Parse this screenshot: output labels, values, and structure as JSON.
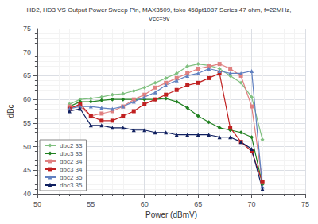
{
  "chart_data": {
    "type": "line",
    "title": "HD2, HD3 VS Output Power Sweep Pin, MAX3509, toko 458pt1087 Series 47 ohm, f=22MHz,\nVcc=9v",
    "xlabel": "Power (dBmV)",
    "ylabel": "dBc",
    "xlim": [
      50,
      75
    ],
    "ylim": [
      40,
      75
    ],
    "xticks": [
      50,
      55,
      60,
      65,
      70,
      75
    ],
    "yticks": [
      40,
      45,
      50,
      55,
      60,
      65,
      70,
      75
    ],
    "grid": true,
    "legend": "lower left",
    "series": [
      {
        "name": "dbc2 33",
        "color": "#80c080",
        "marker": "diamond",
        "x": [
          53,
          54,
          55,
          56,
          57,
          58,
          59,
          60,
          61,
          62,
          63,
          64,
          65,
          66,
          67,
          68,
          69,
          70,
          71
        ],
        "values": [
          59.0,
          60.0,
          60.2,
          60.5,
          61.0,
          61.2,
          61.8,
          62.5,
          63.5,
          64.5,
          65.5,
          67.0,
          67.5,
          67.2,
          66.5,
          65.0,
          63.5,
          60.5,
          51.5
        ]
      },
      {
        "name": "dbc3 33",
        "color": "#208020",
        "marker": "diamond",
        "x": [
          53,
          54,
          55,
          56,
          57,
          58,
          59,
          60,
          61,
          62,
          63,
          64,
          65,
          66,
          67,
          68,
          69,
          70,
          71
        ],
        "values": [
          58.5,
          59.5,
          59.5,
          59.8,
          60.0,
          60.0,
          60.0,
          60.0,
          60.0,
          60.2,
          59.5,
          58.2,
          56.5,
          55.2,
          54.0,
          53.5,
          53.0,
          52.0,
          42.0
        ]
      },
      {
        "name": "dbc2 34",
        "color": "#e08080",
        "marker": "square",
        "x": [
          53,
          54,
          55,
          56,
          57,
          58,
          59,
          60,
          61,
          62,
          63,
          64,
          65,
          66,
          67,
          68,
          69,
          70,
          71
        ],
        "values": [
          58.5,
          58.5,
          56.5,
          57.0,
          57.5,
          58.5,
          60.0,
          61.0,
          62.5,
          63.5,
          64.5,
          65.5,
          66.5,
          67.0,
          67.5,
          66.5,
          65.0,
          58.5,
          42.5
        ]
      },
      {
        "name": "dbc3 34",
        "color": "#c02020",
        "marker": "square",
        "x": [
          53,
          54,
          55,
          56,
          57,
          58,
          59,
          60,
          61,
          62,
          63,
          64,
          65,
          66,
          67,
          68,
          69,
          70,
          71
        ],
        "values": [
          58.0,
          59.0,
          56.5,
          55.5,
          55.5,
          56.5,
          57.5,
          59.0,
          60.0,
          61.0,
          62.0,
          63.0,
          63.5,
          64.5,
          65.5,
          54.0,
          51.0,
          49.0,
          42.5
        ]
      },
      {
        "name": "dbc2 35",
        "color": "#6080c0",
        "marker": "triangle",
        "x": [
          53,
          54,
          55,
          56,
          57,
          58,
          59,
          60,
          61,
          62,
          63,
          64,
          65,
          66,
          67,
          68,
          69,
          70,
          71
        ],
        "values": [
          58.0,
          58.5,
          58.5,
          58.2,
          58.0,
          58.5,
          59.5,
          60.5,
          61.5,
          63.0,
          64.0,
          65.0,
          65.5,
          66.5,
          66.0,
          65.5,
          65.5,
          66.0,
          41.5
        ]
      },
      {
        "name": "dbc3 35",
        "color": "#102060",
        "marker": "triangle",
        "x": [
          53,
          54,
          55,
          56,
          57,
          58,
          59,
          60,
          61,
          62,
          63,
          64,
          65,
          66,
          67,
          68,
          69,
          70,
          71
        ],
        "values": [
          57.5,
          58.0,
          54.5,
          54.5,
          54.0,
          54.0,
          53.5,
          53.5,
          53.0,
          53.0,
          52.5,
          52.5,
          52.5,
          52.5,
          52.0,
          52.0,
          51.0,
          49.5,
          41.0
        ]
      }
    ]
  }
}
